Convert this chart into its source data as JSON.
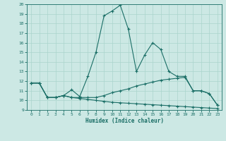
{
  "xlabel": "Humidex (Indice chaleur)",
  "xlim": [
    -0.5,
    23.5
  ],
  "ylim": [
    9,
    20
  ],
  "xticks": [
    0,
    1,
    2,
    3,
    4,
    5,
    6,
    7,
    8,
    9,
    10,
    11,
    12,
    13,
    14,
    15,
    16,
    17,
    18,
    19,
    20,
    21,
    22,
    23
  ],
  "yticks": [
    9,
    10,
    11,
    12,
    13,
    14,
    15,
    16,
    17,
    18,
    19,
    20
  ],
  "bg_color": "#cce8e4",
  "line_color": "#1a6e66",
  "grid_color": "#aad4cc",
  "curves": [
    {
      "x": [
        0,
        1,
        2,
        3,
        4,
        5,
        6,
        7,
        8,
        9,
        10,
        11,
        12,
        13,
        14,
        15,
        16,
        17,
        18,
        19,
        20,
        21,
        22,
        23
      ],
      "y": [
        11.8,
        11.8,
        10.3,
        10.3,
        10.5,
        11.1,
        10.4,
        12.5,
        15.0,
        18.8,
        19.3,
        19.9,
        17.4,
        13.0,
        14.7,
        16.0,
        15.3,
        13.0,
        12.5,
        12.5,
        11.0,
        11.0,
        10.7,
        9.5
      ]
    },
    {
      "x": [
        0,
        1,
        2,
        3,
        4,
        5,
        6,
        7,
        8,
        9,
        10,
        11,
        12,
        13,
        14,
        15,
        16,
        17,
        18,
        19,
        20,
        21,
        22,
        23
      ],
      "y": [
        11.8,
        11.8,
        10.3,
        10.3,
        10.5,
        10.3,
        10.3,
        10.3,
        10.3,
        10.5,
        10.8,
        11.0,
        11.2,
        11.5,
        11.7,
        11.9,
        12.1,
        12.2,
        12.3,
        12.4,
        11.0,
        11.0,
        10.7,
        9.5
      ]
    },
    {
      "x": [
        0,
        1,
        2,
        3,
        4,
        5,
        6,
        7,
        8,
        9,
        10,
        11,
        12,
        13,
        14,
        15,
        16,
        17,
        18,
        19,
        20,
        21,
        22,
        23
      ],
      "y": [
        11.8,
        11.8,
        10.3,
        10.3,
        10.5,
        10.3,
        10.2,
        10.1,
        10.0,
        9.9,
        9.8,
        9.75,
        9.7,
        9.65,
        9.6,
        9.55,
        9.5,
        9.45,
        9.4,
        9.35,
        9.3,
        9.25,
        9.2,
        9.15
      ]
    }
  ]
}
